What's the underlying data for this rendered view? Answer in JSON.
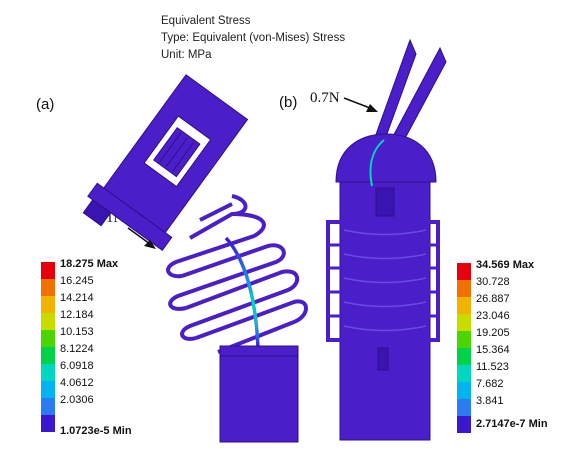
{
  "header": {
    "line1": "Equivalent Stress",
    "line2": "Type: Equivalent (von-Mises) Stress",
    "line3": "Unit: MPa"
  },
  "panel_a": {
    "label": "(a)",
    "force": "1N",
    "legend": {
      "max": "18.275 Max",
      "values": [
        "16.245",
        "14.214",
        "12.184",
        "10.153",
        "8.1224",
        "6.0918",
        "4.0612",
        "2.0306"
      ],
      "min": "1.0723e-5 Min"
    }
  },
  "panel_b": {
    "label": "(b)",
    "force": "0.7N",
    "legend": {
      "max": "34.569 Max",
      "values": [
        "30.728",
        "26.887",
        "23.046",
        "19.205",
        "15.364",
        "11.523",
        "7.682",
        "3.841"
      ],
      "min": "2.7147e-7 Min"
    }
  },
  "colors": {
    "body": "#4a1fc9",
    "body_dark": "#2e0f8a",
    "scale": [
      "#e4000c",
      "#f07000",
      "#f0b400",
      "#c8dc00",
      "#4cd600",
      "#00d24a",
      "#00d6c0",
      "#00b4f0",
      "#2a7cf0",
      "#3a18d0"
    ]
  }
}
